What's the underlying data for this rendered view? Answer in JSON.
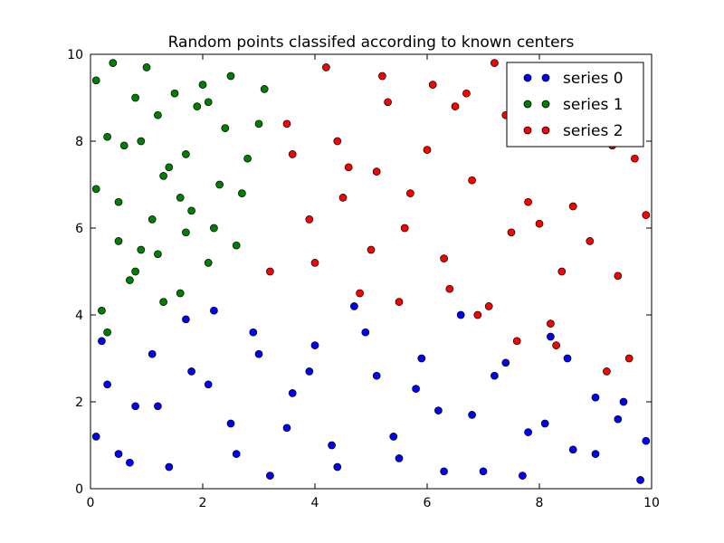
{
  "chart_data": {
    "type": "scatter",
    "title": "Random points classifed according to known centers",
    "xlabel": "",
    "ylabel": "",
    "xlim": [
      0,
      10
    ],
    "ylim": [
      0,
      10
    ],
    "xticks": [
      "0",
      "2",
      "4",
      "6",
      "8",
      "10"
    ],
    "yticks": [
      "0",
      "2",
      "4",
      "6",
      "8",
      "10"
    ],
    "grid": false,
    "legend": "top-right",
    "series": [
      {
        "name": "series 0",
        "color": "#0000ff",
        "region": "lower band, y below about 4.3",
        "x": [
          0.1,
          0.3,
          0.5,
          0.8,
          1.1,
          1.4,
          1.8,
          2.2,
          2.5,
          2.9,
          3.2,
          3.6,
          4.0,
          4.3,
          4.7,
          5.1,
          5.5,
          5.9,
          6.2,
          6.6,
          7.0,
          7.4,
          7.8,
          8.2,
          8.6,
          9.0,
          9.4,
          9.8,
          0.2,
          0.7,
          1.2,
          1.7,
          2.1,
          2.6,
          3.0,
          3.5,
          3.9,
          4.4,
          4.9,
          5.4,
          5.8,
          6.3,
          6.8,
          7.2,
          7.7,
          8.1,
          8.5,
          9.0,
          9.5,
          9.9
        ],
        "y": [
          1.2,
          2.4,
          0.8,
          1.9,
          3.1,
          0.5,
          2.7,
          4.1,
          1.5,
          3.6,
          0.3,
          2.2,
          3.3,
          1.0,
          4.2,
          2.6,
          0.7,
          3.0,
          1.8,
          4.0,
          0.4,
          2.9,
          1.3,
          3.5,
          0.9,
          2.1,
          1.6,
          0.2,
          3.4,
          0.6,
          1.9,
          3.9,
          2.4,
          0.8,
          3.1,
          1.4,
          2.7,
          0.5,
          3.6,
          1.2,
          2.3,
          0.4,
          1.7,
          2.6,
          0.3,
          1.5,
          3.0,
          0.8,
          2.0,
          1.1
        ]
      },
      {
        "name": "series 1",
        "color": "#008000",
        "region": "upper-left, x below about 3.2 and y above about 3.5",
        "x": [
          0.1,
          0.3,
          0.5,
          0.8,
          1.0,
          1.3,
          1.6,
          1.9,
          2.2,
          2.5,
          2.8,
          3.1,
          0.2,
          0.6,
          0.9,
          1.2,
          1.5,
          1.8,
          2.1,
          2.4,
          2.7,
          3.0,
          0.4,
          0.7,
          1.1,
          1.4,
          1.7,
          2.0,
          2.3,
          2.6,
          0.1,
          0.5,
          0.9,
          1.3,
          1.7,
          2.1,
          0.3,
          0.8,
          1.2,
          1.6
        ],
        "y": [
          9.4,
          8.1,
          6.6,
          5.0,
          9.7,
          7.2,
          4.5,
          8.8,
          6.0,
          9.5,
          7.6,
          9.2,
          4.1,
          7.9,
          5.5,
          8.6,
          9.1,
          6.4,
          5.2,
          8.3,
          6.8,
          8.4,
          9.8,
          4.8,
          6.2,
          7.4,
          5.9,
          9.3,
          7.0,
          5.6,
          6.9,
          5.7,
          8.0,
          4.3,
          7.7,
          8.9,
          3.6,
          9.0,
          5.4,
          6.7
        ]
      },
      {
        "name": "series 2",
        "color": "#ff0000",
        "region": "upper-right, x above about 3 and y above about 2.5",
        "x": [
          3.2,
          3.5,
          3.9,
          4.2,
          4.6,
          5.0,
          5.3,
          5.7,
          6.1,
          6.4,
          6.8,
          7.2,
          7.5,
          7.9,
          8.3,
          8.6,
          9.0,
          9.4,
          9.7,
          4.0,
          4.4,
          4.8,
          5.2,
          5.6,
          6.0,
          6.3,
          6.7,
          7.1,
          7.4,
          7.8,
          8.2,
          8.5,
          8.9,
          9.3,
          9.6,
          9.9,
          3.6,
          4.5,
          5.5,
          6.5,
          7.6,
          8.4,
          9.2,
          5.1,
          6.9,
          8.0
        ],
        "y": [
          5.0,
          8.4,
          6.2,
          9.7,
          7.4,
          5.5,
          8.9,
          6.8,
          9.3,
          4.6,
          7.1,
          9.8,
          5.9,
          8.2,
          3.3,
          6.5,
          9.0,
          4.9,
          7.6,
          5.2,
          8.0,
          4.5,
          9.5,
          6.0,
          7.8,
          5.3,
          9.1,
          4.2,
          8.6,
          6.6,
          3.8,
          9.6,
          5.7,
          7.9,
          3.0,
          6.3,
          7.7,
          6.7,
          4.3,
          8.8,
          3.4,
          5.0,
          2.7,
          7.3,
          4.0,
          6.1
        ]
      }
    ]
  }
}
